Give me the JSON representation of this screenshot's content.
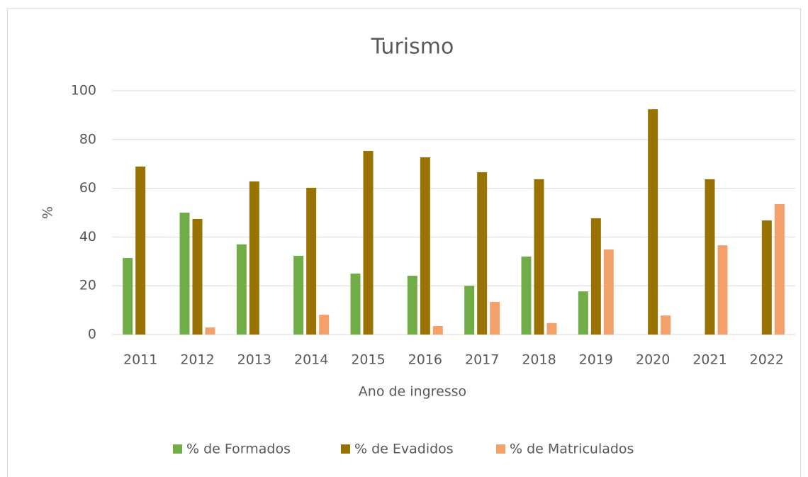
{
  "chart_data": {
    "type": "bar",
    "title": "Turismo",
    "x_label": "Ano de ingresso",
    "y_label": "%",
    "categories": [
      "2011",
      "2012",
      "2013",
      "2014",
      "2015",
      "2016",
      "2017",
      "2018",
      "2019",
      "2020",
      "2021",
      "2022"
    ],
    "series": [
      {
        "name": "% de Formados",
        "color": "#70ad47",
        "values": [
          31.4,
          50,
          37,
          32.3,
          25,
          24.1,
          20,
          32,
          17.7,
          0,
          0,
          0
        ]
      },
      {
        "name": "% de Evadidos",
        "color": "#997300",
        "values": [
          68.9,
          47.4,
          62.8,
          60.2,
          75.3,
          72.7,
          66.6,
          63.7,
          47.7,
          92.4,
          63.7,
          46.8
        ]
      },
      {
        "name": "% de Matriculados",
        "color": "#f4a06a",
        "values": [
          0,
          2.9,
          0,
          8.1,
          0,
          3.5,
          13.4,
          4.7,
          34.9,
          7.8,
          36.6,
          53.5
        ]
      }
    ],
    "ylim": [
      0,
      100
    ],
    "yticks": [
      0,
      20,
      40,
      60,
      80,
      100
    ],
    "grid": true,
    "legend": "bottom"
  }
}
